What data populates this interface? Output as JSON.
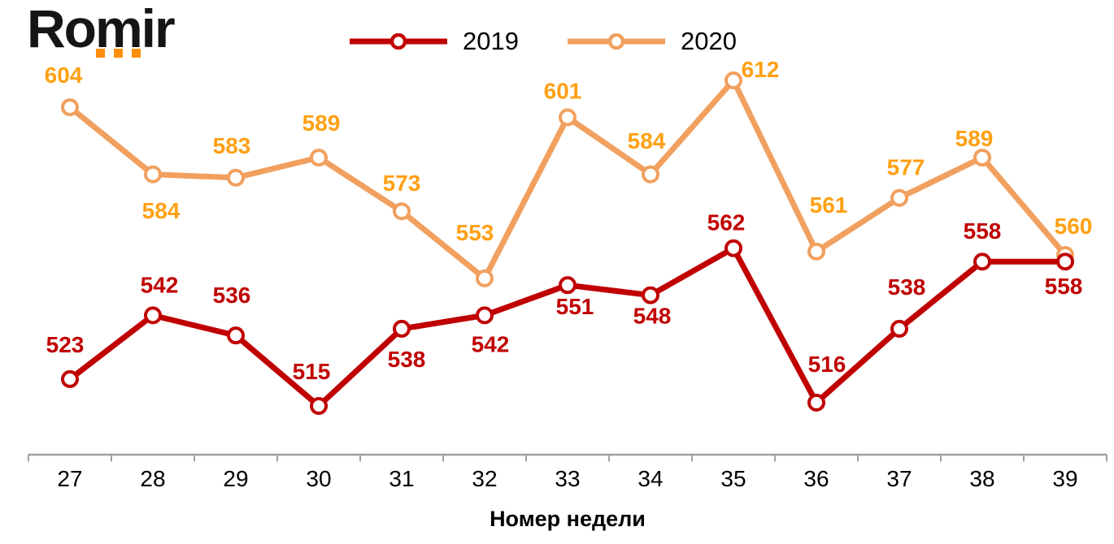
{
  "logo": {
    "text": "Romir",
    "text_color": "#151515",
    "dot_color": "#FF8E0A"
  },
  "chart_data": {
    "type": "line",
    "title": "",
    "xlabel": "Номер недели",
    "ylabel": "",
    "categories": [
      27,
      28,
      29,
      30,
      31,
      32,
      33,
      34,
      35,
      36,
      37,
      38,
      39
    ],
    "series": [
      {
        "name": "2019",
        "color": "#C00000",
        "label_color": "#C00000",
        "values": [
          523,
          542,
          536,
          515,
          538,
          542,
          551,
          548,
          562,
          516,
          538,
          558,
          558
        ],
        "label_offsets": [
          [
            -6,
            -43
          ],
          [
            8,
            -38
          ],
          [
            -5,
            -50
          ],
          [
            -9,
            -43
          ],
          [
            6,
            37
          ],
          [
            7,
            35
          ],
          [
            9,
            26
          ],
          [
            2,
            25
          ],
          [
            -9,
            -32
          ],
          [
            13,
            -48
          ],
          [
            9,
            -52
          ],
          [
            0,
            -38
          ],
          [
            -2,
            30
          ]
        ]
      },
      {
        "name": "2020",
        "color": "#F1A05F",
        "label_color": "#FFA014",
        "values": [
          604,
          584,
          583,
          589,
          573,
          553,
          601,
          584,
          612,
          561,
          577,
          589,
          560
        ],
        "label_offsets": [
          [
            -8,
            -40
          ],
          [
            10,
            44
          ],
          [
            -5,
            -40
          ],
          [
            3,
            -43
          ],
          [
            0,
            -35
          ],
          [
            -12,
            -57
          ],
          [
            -6,
            -33
          ],
          [
            -5,
            -42
          ],
          [
            33,
            -14
          ],
          [
            15,
            -58
          ],
          [
            8,
            -38
          ],
          [
            -10,
            -24
          ],
          [
            10,
            -36
          ]
        ]
      }
    ],
    "legend_position": "top-center",
    "grid": false,
    "y_axis_visible": false,
    "data_labels": true,
    "x_axis_color": "#A0A0A0",
    "x_tick_label_color": "#000000",
    "x_title_color": "#000000"
  }
}
